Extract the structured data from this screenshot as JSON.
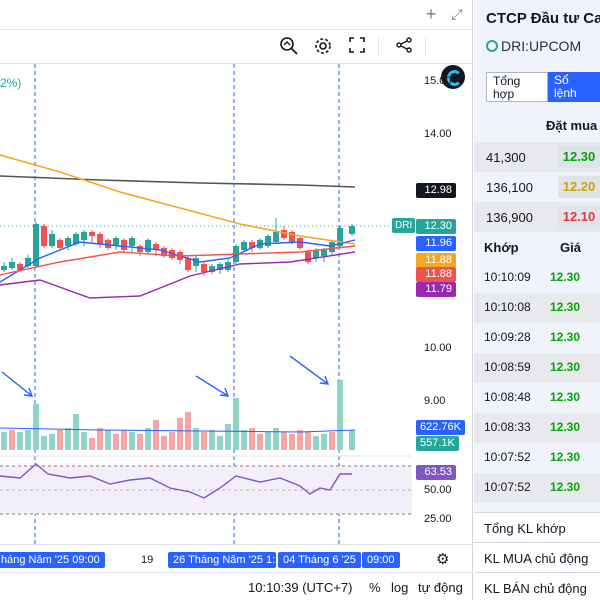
{
  "top": {
    "icons": [
      "plus-icon",
      "expand-icon"
    ]
  },
  "toolbar": {
    "icons": [
      "zoom-icon",
      "gear-icon",
      "fullscreen-icon",
      "share-icon"
    ],
    "brand": "brand-logo"
  },
  "chart": {
    "change_pct": "2%)",
    "symbol_tag": "DRI",
    "axis_ticks": [
      "15.00",
      "14.00",
      "10.00",
      "9.00",
      "25.00",
      "50.00"
    ],
    "price_tags": [
      {
        "value": "12.98",
        "color": "#131722"
      },
      {
        "value": "12.30",
        "color": "#26a69a"
      },
      {
        "value": "11.96",
        "color": "#2962ff"
      },
      {
        "value": "11.88",
        "color": "#f5a623"
      },
      {
        "value": "11.88",
        "color": "#ef5350"
      },
      {
        "value": "11.79",
        "color": "#9c27b0"
      },
      {
        "value": "622.76K",
        "color": "#2962ff"
      },
      {
        "value": "557.1K",
        "color": "#26a69a"
      },
      {
        "value": "63.53",
        "color": "#7e57c2"
      }
    ],
    "time_labels": {
      "left": "háng Năm '25   09:00",
      "mid_plain": "19",
      "sel1": "26 Tháng Năm '25   1:",
      "sel2": "04 Tháng 6 '25",
      "right": "09:00"
    },
    "colors": {
      "up": "#26a69a",
      "down": "#ef5350",
      "ma1": "#2962ff",
      "ma2": "#f5a623",
      "ma3": "#ef5350",
      "ma4": "#9c27b0",
      "ma_long": "#555555",
      "rsi": "#7e57c2"
    }
  },
  "bottom": {
    "time": "10:10:39 (UTC+7)",
    "pct": "%",
    "log": "log",
    "auto": "tự động"
  },
  "side": {
    "title": "CTCP Đầu tư Ca.",
    "symbol": "DRI:UPCOM",
    "tabs": [
      "Tổng hợp",
      "Sổ lệnh"
    ],
    "orderbook_header": "Đặt mua",
    "orderbook": [
      {
        "vol": "41,300",
        "price": "12.30",
        "color": "#00a700",
        "bg": "#e8e9ec"
      },
      {
        "vol": "136,100",
        "price": "12.20",
        "color": "#c9a600",
        "bg": "#f0f3fa"
      },
      {
        "vol": "136,900",
        "price": "12.10",
        "color": "#e53935",
        "bg": "#e8e9ec"
      }
    ],
    "trades_header": {
      "time": "Khớp",
      "price": "Giá"
    },
    "trades": [
      {
        "time": "10:10:09",
        "price": "12.30"
      },
      {
        "time": "10:10:08",
        "price": "12.30"
      },
      {
        "time": "10:09:28",
        "price": "12.30"
      },
      {
        "time": "10:08:59",
        "price": "12.30"
      },
      {
        "time": "10:08:48",
        "price": "12.30"
      },
      {
        "time": "10:08:33",
        "price": "12.30"
      },
      {
        "time": "10:07:52",
        "price": "12.30"
      },
      {
        "time": "10:07:52",
        "price": "12.30"
      }
    ],
    "summary": [
      "Tổng KL khớp",
      "KL MUA chủ động",
      "KL BÁN chủ động"
    ]
  }
}
